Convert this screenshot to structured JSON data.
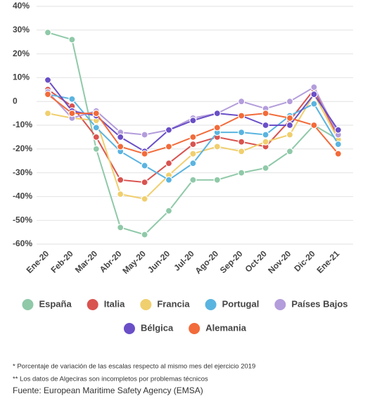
{
  "chart_data": {
    "type": "line",
    "categories": [
      "Ene-20",
      "Feb-20",
      "Mar-20",
      "Abr-20",
      "May-20",
      "Jun-20",
      "Jul-20",
      "Ago-20",
      "Sep-20",
      "Oct-20",
      "Nov-20",
      "Dic-20",
      "Ene-21"
    ],
    "series": [
      {
        "name": "España",
        "color": "#8fc9a8",
        "values": [
          29,
          26,
          -20,
          -53,
          -56,
          -46,
          -33,
          -33,
          -30,
          -28,
          -21,
          -10,
          -16
        ]
      },
      {
        "name": "Italia",
        "color": "#d9534f",
        "values": [
          5,
          -2,
          -15,
          -33,
          -34,
          -26,
          -18,
          -15,
          -17,
          -19,
          -8,
          5,
          -15
        ]
      },
      {
        "name": "Francia",
        "color": "#f0cf6e",
        "values": [
          -5,
          -7,
          -8,
          -39,
          -41,
          -31,
          -22,
          -19,
          -21,
          -17,
          -14,
          3,
          -16
        ]
      },
      {
        "name": "Portugal",
        "color": "#5ab4e0",
        "values": [
          3,
          1,
          -11,
          -21,
          -27,
          -33,
          -26,
          -13,
          -13,
          -14,
          -6,
          -1,
          -18
        ]
      },
      {
        "name": "Países Bajos",
        "color": "#b39ddb",
        "values": [
          4,
          -7,
          -4,
          -13,
          -14,
          -12,
          -7,
          -5,
          0,
          -3,
          0,
          6,
          -14
        ]
      },
      {
        "name": "Bélgica",
        "color": "#6a4fc7",
        "values": [
          9,
          -4,
          -6,
          -15,
          -21,
          -12,
          -8,
          -5,
          -6,
          -10,
          -10,
          3,
          -12
        ]
      },
      {
        "name": "Alemania",
        "color": "#f26b3a",
        "values": [
          3,
          -5,
          -5,
          -19,
          -22,
          -19,
          -15,
          -11,
          -6,
          -5,
          -7,
          -10,
          -22
        ]
      }
    ],
    "ylim": [
      -60,
      40
    ],
    "yticks": [
      {
        "value": 40,
        "label": "40%"
      },
      {
        "value": 30,
        "label": "30%"
      },
      {
        "value": 20,
        "label": "20%"
      },
      {
        "value": 10,
        "label": "10%"
      },
      0,
      {
        "value": -10,
        "label": "-10%"
      },
      {
        "value": -20,
        "label": "-20%"
      },
      {
        "value": -30,
        "label": "-30%"
      },
      {
        "value": -40,
        "label": "-40%"
      },
      {
        "value": -50,
        "label": "-50%"
      },
      {
        "value": -60,
        "label": "-60%"
      }
    ],
    "grid": true,
    "notes": [
      "* Porcentaje de variación de las escalas respecto al mismo mes del ejercicio 2019",
      "** Los datos de Algeciras son incompletos por problemas técnicos"
    ],
    "source": "Fuente: European Maritime Safety Agency (EMSA)"
  }
}
